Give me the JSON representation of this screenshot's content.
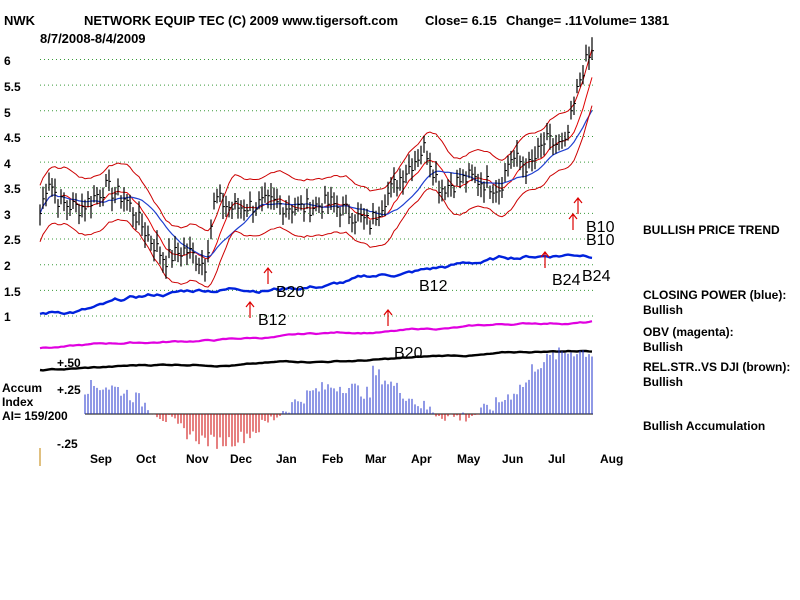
{
  "header": {
    "symbol": "NWK",
    "name": "NETWORK EQUIP TEC",
    "copyright": "(C) 2009 www.tigersoft.com",
    "close_text": "Close=  6.15",
    "change_text": "Change= .11",
    "volume_text": "Volume= 1381",
    "date_range": "8/7/2008-8/4/2009"
  },
  "right_labels": {
    "trend": "BULLISH PRICE TREND",
    "cp_title": "CLOSING POWER (blue):",
    "cp_value": "Bullish",
    "obv_title": "OBV (magenta):",
    "obv_value": "Bullish",
    "rs_title": "REL.STR..VS DJI (brown):",
    "rs_value": "Bullish",
    "accum": "Bullish Accumulation"
  },
  "accum_panel": {
    "title_line1": "Accum",
    "title_line2": "Index",
    "ai_text": "AI= 159/200",
    "tick_plus50": "+.50",
    "tick_plus25": "+.25",
    "tick_minus25": "-.25"
  },
  "colors": {
    "price": "#000000",
    "upper_band": "#cc0000",
    "ma_red": "#e00000",
    "ma_blue": "#1f3fd0",
    "closing_power": "#0022dd",
    "obv": "#e000e0",
    "rel_strength": "#000000",
    "accum_pos": "#2233cc",
    "accum_neg": "#cc0000",
    "signal_arrow": "#dd0000"
  },
  "chart_data": {
    "type": "line",
    "title": "NETWORK EQUIP TEC",
    "y_ticks": [
      "6",
      "5.5",
      "5",
      "4.5",
      "4",
      "3.5",
      "3",
      "2.5",
      "2",
      "1.5",
      "1"
    ],
    "ylim": [
      1,
      6
    ],
    "x_ticks": [
      "Sep",
      "Oct",
      "Nov",
      "Dec",
      "Jan",
      "Feb",
      "Mar",
      "Apr",
      "May",
      "Jun",
      "Jul",
      "Aug"
    ],
    "signals": [
      "B12",
      "B20",
      "B10",
      "B12",
      "B24",
      "B20",
      "B10",
      "B24"
    ],
    "series": [
      {
        "name": "Close",
        "x": [
          "Aug",
          "Aug",
          "Sep",
          "Sep",
          "Sep",
          "Oct",
          "Oct",
          "Oct",
          "Nov",
          "Nov",
          "Nov",
          "Dec",
          "Dec",
          "Jan",
          "Jan",
          "Feb",
          "Feb",
          "Mar",
          "Mar",
          "Apr",
          "Apr",
          "May",
          "May",
          "Jun",
          "Jun",
          "Jul",
          "Jul",
          "Jul",
          "Aug"
        ],
        "values": [
          3.0,
          3.7,
          3.2,
          3.1,
          3.5,
          3.3,
          2.5,
          2.1,
          2.3,
          2.0,
          3.3,
          3.1,
          3.2,
          3.1,
          3.2,
          3.0,
          2.8,
          3.3,
          3.7,
          4.3,
          3.5,
          3.7,
          3.5,
          4.1,
          3.9,
          4.4,
          4.3,
          5.8,
          6.15
        ]
      }
    ]
  }
}
